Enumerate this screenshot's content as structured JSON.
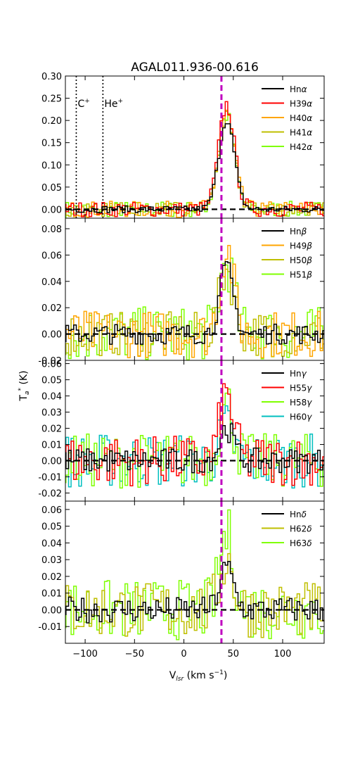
{
  "title": "AGAL011.936-00.616",
  "xlabel": "V",
  "xlabel_sub": "lsr",
  "xlabel_unit": " (km s",
  "xlabel_exp": "−1",
  "xlabel_close": ")",
  "ylabel": "T",
  "ylabel_sub": "a",
  "ylabel_sup": "*",
  "ylabel_unit": " (K)",
  "markers": {
    "c_label": "C",
    "c_sup": "+",
    "he_label": "He",
    "he_sup": "+",
    "c_velocity": -109,
    "he_velocity": -82,
    "line_velocity": 38,
    "line_color": "#bf00bf"
  },
  "chart_data": [
    {
      "type": "line",
      "panel": "alpha",
      "xlim": [
        -120,
        142
      ],
      "ylim": [
        -0.02,
        0.3
      ],
      "yticks": [
        "0.30",
        "0.25",
        "0.20",
        "0.15",
        "0.10",
        "0.05",
        "0.00"
      ],
      "ytick_values": [
        0.3,
        0.25,
        0.2,
        0.15,
        0.1,
        0.05,
        0.0
      ],
      "legend_location": "top-right",
      "series": [
        {
          "name": "Hn",
          "greek": "α",
          "color": "#000000",
          "peak": 0.2,
          "noise": 0.006,
          "width": 8
        },
        {
          "name": "H39",
          "greek": "α",
          "color": "#ff0000",
          "peak": 0.235,
          "noise": 0.013,
          "width": 8
        },
        {
          "name": "H40",
          "greek": "α",
          "color": "#ffa500",
          "peak": 0.215,
          "noise": 0.014,
          "width": 8
        },
        {
          "name": "H41",
          "greek": "α",
          "color": "#bfbf00",
          "peak": 0.205,
          "noise": 0.012,
          "width": 8
        },
        {
          "name": "H42",
          "greek": "α",
          "color": "#7fff00",
          "peak": 0.21,
          "noise": 0.014,
          "width": 8
        }
      ]
    },
    {
      "type": "line",
      "panel": "beta",
      "xlim": [
        -120,
        142
      ],
      "ylim": [
        -0.02,
        0.088
      ],
      "yticks": [
        "0.08",
        "0.06",
        "0.04",
        "0.02",
        "0.00",
        "-0.02"
      ],
      "ytick_values": [
        0.08,
        0.06,
        0.04,
        0.02,
        0.0,
        -0.02
      ],
      "legend_location": "top-right",
      "series": [
        {
          "name": "Hn",
          "greek": "β",
          "color": "#000000",
          "peak": 0.05,
          "noise": 0.006,
          "width": 7
        },
        {
          "name": "H49",
          "greek": "β",
          "color": "#ffa500",
          "peak": 0.065,
          "noise": 0.014,
          "width": 7
        },
        {
          "name": "H50",
          "greek": "β",
          "color": "#bfbf00",
          "peak": 0.05,
          "noise": 0.013,
          "width": 7
        },
        {
          "name": "H51",
          "greek": "β",
          "color": "#7fff00",
          "peak": 0.055,
          "noise": 0.016,
          "width": 7
        }
      ]
    },
    {
      "type": "line",
      "panel": "gamma",
      "xlim": [
        -120,
        142
      ],
      "ylim": [
        -0.025,
        0.062
      ],
      "yticks": [
        "0.06",
        "0.05",
        "0.04",
        "0.03",
        "0.02",
        "0.01",
        "0.00",
        "-0.01",
        "-0.02"
      ],
      "ytick_values": [
        0.06,
        0.05,
        0.04,
        0.03,
        0.02,
        0.01,
        0.0,
        -0.01,
        -0.02
      ],
      "legend_location": "top-right",
      "series": [
        {
          "name": "Hn",
          "greek": "γ",
          "color": "#000000",
          "peak": 0.02,
          "noise": 0.006,
          "width": 7
        },
        {
          "name": "H55",
          "greek": "γ",
          "color": "#ff0000",
          "peak": 0.04,
          "noise": 0.012,
          "width": 7
        },
        {
          "name": "H58",
          "greek": "γ",
          "color": "#7fff00",
          "peak": 0.035,
          "noise": 0.013,
          "width": 7
        },
        {
          "name": "H60",
          "greek": "γ",
          "color": "#00bfbf",
          "peak": 0.02,
          "noise": 0.013,
          "width": 7
        }
      ]
    },
    {
      "type": "line",
      "panel": "delta",
      "xlim": [
        -120,
        142
      ],
      "ylim": [
        -0.02,
        0.065
      ],
      "yticks": [
        "0.06",
        "0.05",
        "0.04",
        "0.03",
        "0.02",
        "0.01",
        "0.00",
        "-0.01"
      ],
      "ytick_values": [
        0.06,
        0.05,
        0.04,
        0.03,
        0.02,
        0.01,
        0.0,
        -0.01
      ],
      "legend_location": "top-right",
      "series": [
        {
          "name": "Hn",
          "greek": "δ",
          "color": "#000000",
          "peak": 0.025,
          "noise": 0.006,
          "width": 7
        },
        {
          "name": "H62",
          "greek": "δ",
          "color": "#bfbf00",
          "peak": 0.03,
          "noise": 0.013,
          "width": 7
        },
        {
          "name": "H63",
          "greek": "δ",
          "color": "#7fff00",
          "peak": 0.045,
          "noise": 0.014,
          "width": 7
        }
      ]
    }
  ],
  "xticks": [
    "−100",
    "−50",
    "0",
    "50",
    "100"
  ],
  "xtick_values": [
    -100,
    -50,
    0,
    50,
    100
  ]
}
